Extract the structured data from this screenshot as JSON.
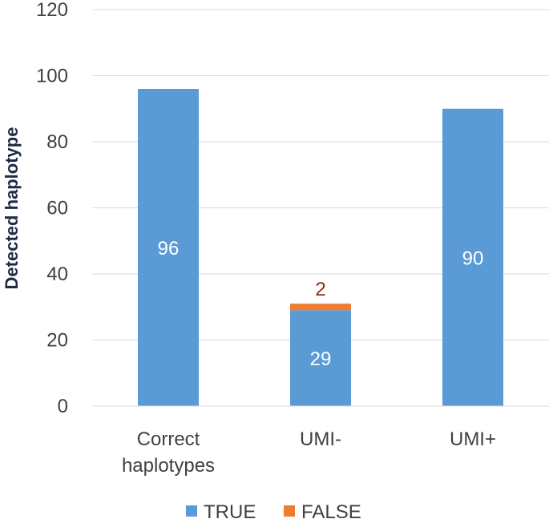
{
  "chart_data": {
    "type": "bar",
    "stacked": true,
    "categories": [
      [
        "Correct",
        "haplotypes"
      ],
      [
        "UMI-"
      ],
      [
        "UMI+"
      ]
    ],
    "series": [
      {
        "name": "TRUE",
        "values": [
          96,
          29,
          90
        ],
        "color": "#5b9bd5",
        "labels": [
          "96",
          "29",
          "90"
        ],
        "label_color": "#ffffff"
      },
      {
        "name": "FALSE",
        "values": [
          0,
          2,
          0
        ],
        "color": "#ed7d31",
        "labels": [
          "",
          "2",
          ""
        ],
        "label_color": "#8b2e0f"
      }
    ],
    "title": "",
    "xlabel": "",
    "ylabel": "Detected haplotype",
    "ylim": [
      0,
      120
    ],
    "yticks": [
      0,
      20,
      40,
      60,
      80,
      100,
      120
    ],
    "grid": true,
    "legend": "bottom"
  }
}
